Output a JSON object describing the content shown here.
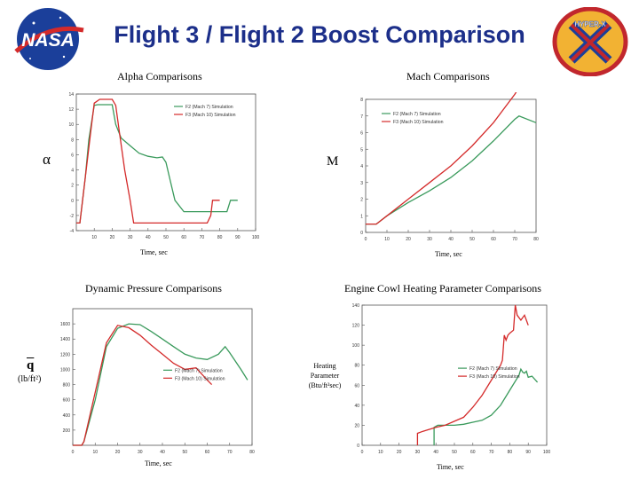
{
  "header": {
    "title": "Flight 3 / Flight 2 Boost Comparison",
    "left_logo": "NASA",
    "right_logo": "HYPER-X"
  },
  "colors": {
    "f2": "#3a9a5c",
    "f3": "#d42a2a",
    "title": "#1c2f8a"
  },
  "chart_data": [
    {
      "type": "line",
      "title": "Alpha Comparisons",
      "ylabel": "α",
      "xlabel": "Time, sec",
      "xlim": [
        0,
        100
      ],
      "ylim": [
        -4,
        14
      ],
      "xticks": [
        10,
        20,
        30,
        40,
        50,
        60,
        70,
        80,
        90,
        100
      ],
      "yticks": [
        -4,
        -2,
        0,
        2,
        4,
        6,
        8,
        10,
        12,
        14
      ],
      "legend_position": "top-right",
      "series": [
        {
          "name": "F2 (Mach 7) Simulation",
          "color": "#3a9a5c",
          "x": [
            0,
            2,
            5,
            7,
            10,
            12,
            20,
            22,
            25,
            30,
            35,
            40,
            45,
            48,
            50,
            52,
            55,
            60,
            70,
            75,
            80,
            84,
            86,
            90
          ],
          "y": [
            -3,
            -3,
            3,
            8,
            12.5,
            12.6,
            12.6,
            10,
            8.2,
            7.2,
            6.2,
            5.8,
            5.6,
            5.7,
            5,
            3,
            0,
            -1.5,
            -1.5,
            -1.5,
            -1.5,
            -1.5,
            0,
            0
          ]
        },
        {
          "name": "F3 (Mach 10) Simulation",
          "color": "#d42a2a",
          "x": [
            0,
            2,
            5,
            8,
            10,
            13,
            20,
            22,
            24,
            27,
            30,
            32,
            40,
            50,
            60,
            73,
            75,
            76,
            80
          ],
          "y": [
            -3,
            -3,
            3,
            9,
            12.8,
            13.3,
            13.3,
            12.5,
            9,
            4,
            0,
            -3,
            -3,
            -3,
            -3,
            -3,
            -2,
            0,
            0
          ]
        }
      ]
    },
    {
      "type": "line",
      "title": "Mach Comparisons",
      "ylabel": "M",
      "xlabel": "Time, sec",
      "xlim": [
        0,
        80
      ],
      "ylim": [
        0,
        8
      ],
      "xticks": [
        0,
        10,
        20,
        30,
        40,
        50,
        60,
        70,
        80
      ],
      "yticks": [
        0,
        1,
        2,
        3,
        4,
        5,
        6,
        7,
        8
      ],
      "legend_position": "top-left",
      "series": [
        {
          "name": "F2 (Mach 7) Simulation",
          "color": "#3a9a5c",
          "x": [
            0,
            5,
            10,
            20,
            30,
            40,
            50,
            60,
            70,
            72,
            80
          ],
          "y": [
            0.5,
            0.5,
            1.0,
            1.8,
            2.5,
            3.3,
            4.3,
            5.5,
            6.8,
            7.0,
            6.6
          ]
        },
        {
          "name": "F3 (Mach 10) Simulation",
          "color": "#d42a2a",
          "x": [
            0,
            5,
            10,
            20,
            30,
            40,
            50,
            60,
            70,
            72
          ],
          "y": [
            0.5,
            0.5,
            1.0,
            2.0,
            3.0,
            4.0,
            5.2,
            6.6,
            8.3,
            8.7
          ]
        }
      ]
    },
    {
      "type": "line",
      "title": "Dynamic Pressure Comparisons",
      "ylabel": "q",
      "ylabel_units": "(lb/ft²)",
      "xlabel": "Time, sec",
      "xlim": [
        0,
        80
      ],
      "ylim": [
        0,
        1800
      ],
      "xticks": [
        0,
        10,
        20,
        30,
        40,
        50,
        60,
        70,
        80
      ],
      "yticks": [
        200,
        400,
        600,
        800,
        1000,
        1200,
        1400,
        1600
      ],
      "legend_position": "center-right",
      "series": [
        {
          "name": "F2 (Mach 7) Simulation",
          "color": "#3a9a5c",
          "x": [
            0,
            4,
            5,
            10,
            15,
            20,
            25,
            30,
            35,
            40,
            45,
            50,
            55,
            60,
            65,
            68,
            70,
            75,
            78
          ],
          "y": [
            0,
            0,
            50,
            600,
            1300,
            1540,
            1600,
            1590,
            1500,
            1400,
            1300,
            1200,
            1150,
            1130,
            1200,
            1300,
            1220,
            1000,
            860
          ]
        },
        {
          "name": "F3 (Mach 10) Simulation",
          "color": "#d42a2a",
          "x": [
            0,
            4,
            5,
            10,
            15,
            20,
            25,
            30,
            35,
            40,
            45,
            50,
            55,
            60,
            62
          ],
          "y": [
            0,
            0,
            50,
            700,
            1350,
            1580,
            1550,
            1450,
            1320,
            1200,
            1080,
            1000,
            1020,
            860,
            800
          ]
        }
      ]
    },
    {
      "type": "line",
      "title": "Engine Cowl Heating Parameter Comparisons",
      "ylabel": "Heating Parameter (Btu/ft²sec)",
      "xlabel": "Time, sec",
      "xlim": [
        0,
        100
      ],
      "ylim": [
        0,
        140
      ],
      "xticks": [
        0,
        10,
        20,
        30,
        40,
        50,
        60,
        70,
        80,
        90,
        100
      ],
      "yticks": [
        0,
        20,
        40,
        60,
        80,
        100,
        120,
        140
      ],
      "legend_position": "center-right",
      "series": [
        {
          "name": "F2 (Mach 7) Simulation",
          "color": "#3a9a5c",
          "x": [
            39,
            39,
            41,
            45,
            50,
            55,
            60,
            65,
            70,
            75,
            80,
            85,
            86,
            87,
            88,
            89,
            90,
            92,
            95
          ],
          "y": [
            0,
            18,
            20,
            20,
            20,
            21,
            23,
            25,
            30,
            40,
            55,
            70,
            76,
            73,
            72,
            74,
            68,
            69,
            63
          ]
        },
        {
          "name": "F3 (Mach 10) Simulation",
          "color": "#d42a2a",
          "x": [
            30,
            30,
            33,
            40,
            45,
            50,
            55,
            60,
            65,
            70,
            75,
            76,
            77,
            78,
            79,
            80,
            82,
            83,
            84,
            86,
            88,
            90
          ],
          "y": [
            0,
            12,
            14,
            18,
            20,
            24,
            28,
            38,
            50,
            65,
            80,
            85,
            110,
            105,
            110,
            112,
            115,
            140,
            130,
            125,
            130,
            120
          ]
        }
      ]
    }
  ]
}
